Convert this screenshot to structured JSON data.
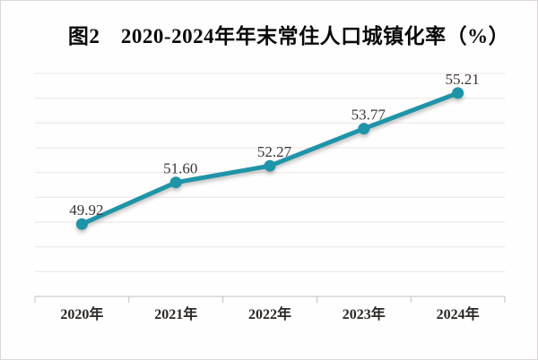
{
  "chart_data": {
    "type": "line",
    "title": "图2　2020-2024年年末常住人口城镇化率（%）",
    "categories": [
      "2020年",
      "2021年",
      "2022年",
      "2023年",
      "2024年"
    ],
    "values": [
      49.92,
      51.6,
      52.27,
      53.77,
      55.21
    ],
    "data_labels": [
      "49.92",
      "51.60",
      "52.27",
      "53.77",
      "55.21"
    ],
    "xlabel": "",
    "ylabel": "",
    "ylim": [
      47,
      56
    ],
    "gridline_step": 1,
    "grid": true,
    "legend_position": "none",
    "y_axis_labels_visible": false,
    "colors": {
      "line": "#1E94A8",
      "marker": "#1E94A8",
      "grid": "#ECE4E2",
      "axis": "#C6BFBD",
      "data_label": "#3A3633",
      "axis_label": "#2B2724",
      "title": "#0A0A0A",
      "background": "#FEFEFE"
    }
  }
}
